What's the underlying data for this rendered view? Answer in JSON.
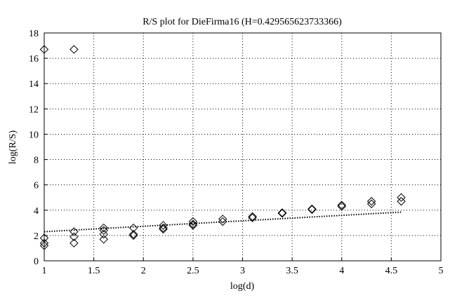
{
  "chart_data": {
    "type": "scatter",
    "title": "R/S plot for DieFirma16 (H=0.429565623733366)",
    "x_label": "log(d)",
    "y_label": "log(R/S)",
    "xlim": [
      1,
      5
    ],
    "ylim": [
      0,
      18
    ],
    "xticks": [
      1,
      1.5,
      2,
      2.5,
      3,
      3.5,
      4,
      4.5,
      5
    ],
    "yticks": [
      0,
      2,
      4,
      6,
      8,
      10,
      12,
      14,
      16,
      18
    ],
    "grid": true,
    "series": [
      {
        "type": "scatter",
        "marker": "diamond",
        "color": "#000000",
        "x": [
          1,
          1,
          1,
          1,
          1.3,
          1.3,
          1.3,
          1.3,
          1.6,
          1.6,
          1.6,
          1.6,
          1.9,
          1.9,
          1.9,
          2.2,
          2.2,
          2.2,
          2.5,
          2.5,
          2.5,
          2.8,
          2.8,
          3.1,
          3.1,
          3.4,
          3.4,
          3.7,
          3.7,
          4.0,
          4.0,
          4.3,
          4.3,
          4.6,
          4.6
        ],
        "values": [
          16.7,
          1.8,
          1.4,
          1.2,
          16.7,
          2.3,
          1.9,
          1.4,
          2.6,
          2.4,
          2.1,
          1.7,
          2.6,
          2.1,
          2.0,
          2.8,
          2.6,
          2.5,
          3.1,
          2.9,
          2.8,
          3.3,
          3.1,
          3.5,
          3.4,
          3.8,
          3.75,
          4.1,
          4.05,
          4.4,
          4.3,
          4.7,
          4.5,
          5.0,
          4.7
        ]
      },
      {
        "type": "line",
        "style": "dotted",
        "color": "#000000",
        "x": [
          1,
          4.6
        ],
        "values": [
          2.3,
          3.85
        ]
      }
    ]
  }
}
